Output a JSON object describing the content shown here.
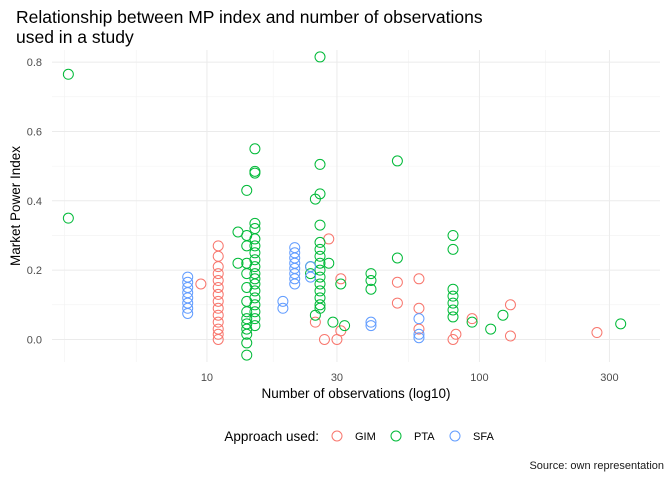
{
  "chart_data": {
    "type": "scatter",
    "title": "Relationship between MP index and number of observations\nused in a study",
    "xlabel": "Number of observations (log10)",
    "ylabel": "Market Power Index",
    "caption": "Source: own representation",
    "x_scale": "log10",
    "xlim": [
      2.7,
      460
    ],
    "ylim": [
      -0.065,
      0.835
    ],
    "x_ticks": [
      10,
      30,
      100,
      300
    ],
    "y_ticks": [
      0.0,
      0.2,
      0.4,
      0.6,
      0.8
    ],
    "y_tick_labels": [
      "0.0",
      "0.2",
      "0.4",
      "0.6",
      "0.8"
    ],
    "grid": true,
    "legend": {
      "title": "Approach used:",
      "position": "bottom"
    },
    "colors": {
      "GIM": "#F8766D",
      "PTA": "#00BA38",
      "SFA": "#619CFF"
    },
    "series": [
      {
        "name": "GIM",
        "points": [
          [
            9.5,
            0.16
          ],
          [
            11,
            0.27
          ],
          [
            11,
            0.24
          ],
          [
            11,
            0.21
          ],
          [
            11,
            0.19
          ],
          [
            11,
            0.17
          ],
          [
            11,
            0.15
          ],
          [
            11,
            0.13
          ],
          [
            11,
            0.11
          ],
          [
            11,
            0.09
          ],
          [
            11,
            0.07
          ],
          [
            11,
            0.05
          ],
          [
            11,
            0.03
          ],
          [
            11,
            0.015
          ],
          [
            11,
            0.0
          ],
          [
            25,
            0.05
          ],
          [
            27,
            0.0
          ],
          [
            28,
            0.29
          ],
          [
            30,
            0.0
          ],
          [
            31,
            0.175
          ],
          [
            31,
            0.025
          ],
          [
            50,
            0.165
          ],
          [
            50,
            0.105
          ],
          [
            60,
            0.175
          ],
          [
            60,
            0.09
          ],
          [
            60,
            0.03
          ],
          [
            80,
            0.0
          ],
          [
            82,
            0.015
          ],
          [
            94,
            0.06
          ],
          [
            130,
            0.1
          ],
          [
            130,
            0.01
          ],
          [
            270,
            0.02
          ]
        ]
      },
      {
        "name": "PTA",
        "points": [
          [
            3.1,
            0.765
          ],
          [
            3.1,
            0.35
          ],
          [
            13,
            0.22
          ],
          [
            13,
            0.31
          ],
          [
            14,
            0.43
          ],
          [
            14,
            0.3
          ],
          [
            14,
            0.27
          ],
          [
            14,
            0.22
          ],
          [
            14,
            0.19
          ],
          [
            14,
            0.15
          ],
          [
            14,
            0.11
          ],
          [
            14,
            0.08
          ],
          [
            14,
            0.06
          ],
          [
            14,
            0.045
          ],
          [
            14,
            0.03
          ],
          [
            14,
            0.015
          ],
          [
            14,
            -0.01
          ],
          [
            14,
            -0.045
          ],
          [
            15,
            0.55
          ],
          [
            15,
            0.485
          ],
          [
            15,
            0.48
          ],
          [
            15,
            0.335
          ],
          [
            15,
            0.32
          ],
          [
            15,
            0.29
          ],
          [
            15,
            0.27
          ],
          [
            15,
            0.25
          ],
          [
            15,
            0.23
          ],
          [
            15,
            0.21
          ],
          [
            15,
            0.19
          ],
          [
            15,
            0.175
          ],
          [
            15,
            0.16
          ],
          [
            15,
            0.14
          ],
          [
            15,
            0.12
          ],
          [
            15,
            0.1
          ],
          [
            15,
            0.08
          ],
          [
            15,
            0.06
          ],
          [
            15,
            0.04
          ],
          [
            24,
            0.21
          ],
          [
            24,
            0.19
          ],
          [
            25,
            0.405
          ],
          [
            25,
            0.07
          ],
          [
            26,
            0.815
          ],
          [
            26,
            0.505
          ],
          [
            26,
            0.42
          ],
          [
            26,
            0.33
          ],
          [
            26,
            0.28
          ],
          [
            26,
            0.26
          ],
          [
            26,
            0.24
          ],
          [
            26,
            0.22
          ],
          [
            26,
            0.2
          ],
          [
            26,
            0.18
          ],
          [
            26,
            0.16
          ],
          [
            26,
            0.14
          ],
          [
            26,
            0.12
          ],
          [
            26,
            0.1
          ],
          [
            26,
            0.09
          ],
          [
            28,
            0.22
          ],
          [
            29,
            0.05
          ],
          [
            31,
            0.16
          ],
          [
            32,
            0.04
          ],
          [
            40,
            0.19
          ],
          [
            40,
            0.17
          ],
          [
            40,
            0.145
          ],
          [
            50,
            0.515
          ],
          [
            50,
            0.235
          ],
          [
            80,
            0.3
          ],
          [
            80,
            0.26
          ],
          [
            80,
            0.145
          ],
          [
            80,
            0.125
          ],
          [
            80,
            0.105
          ],
          [
            80,
            0.085
          ],
          [
            80,
            0.065
          ],
          [
            94,
            0.05
          ],
          [
            110,
            0.03
          ],
          [
            122,
            0.07
          ],
          [
            330,
            0.045
          ]
        ]
      },
      {
        "name": "SFA",
        "points": [
          [
            8.5,
            0.18
          ],
          [
            8.5,
            0.165
          ],
          [
            8.5,
            0.15
          ],
          [
            8.5,
            0.135
          ],
          [
            8.5,
            0.12
          ],
          [
            8.5,
            0.105
          ],
          [
            8.5,
            0.09
          ],
          [
            8.5,
            0.075
          ],
          [
            19,
            0.11
          ],
          [
            19,
            0.09
          ],
          [
            21,
            0.265
          ],
          [
            21,
            0.25
          ],
          [
            21,
            0.235
          ],
          [
            21,
            0.22
          ],
          [
            21,
            0.205
          ],
          [
            21,
            0.19
          ],
          [
            21,
            0.175
          ],
          [
            21,
            0.16
          ],
          [
            24,
            0.21
          ],
          [
            24,
            0.18
          ],
          [
            40,
            0.05
          ],
          [
            40,
            0.04
          ],
          [
            60,
            0.06
          ],
          [
            60,
            0.015
          ],
          [
            60,
            0.005
          ]
        ]
      }
    ]
  }
}
